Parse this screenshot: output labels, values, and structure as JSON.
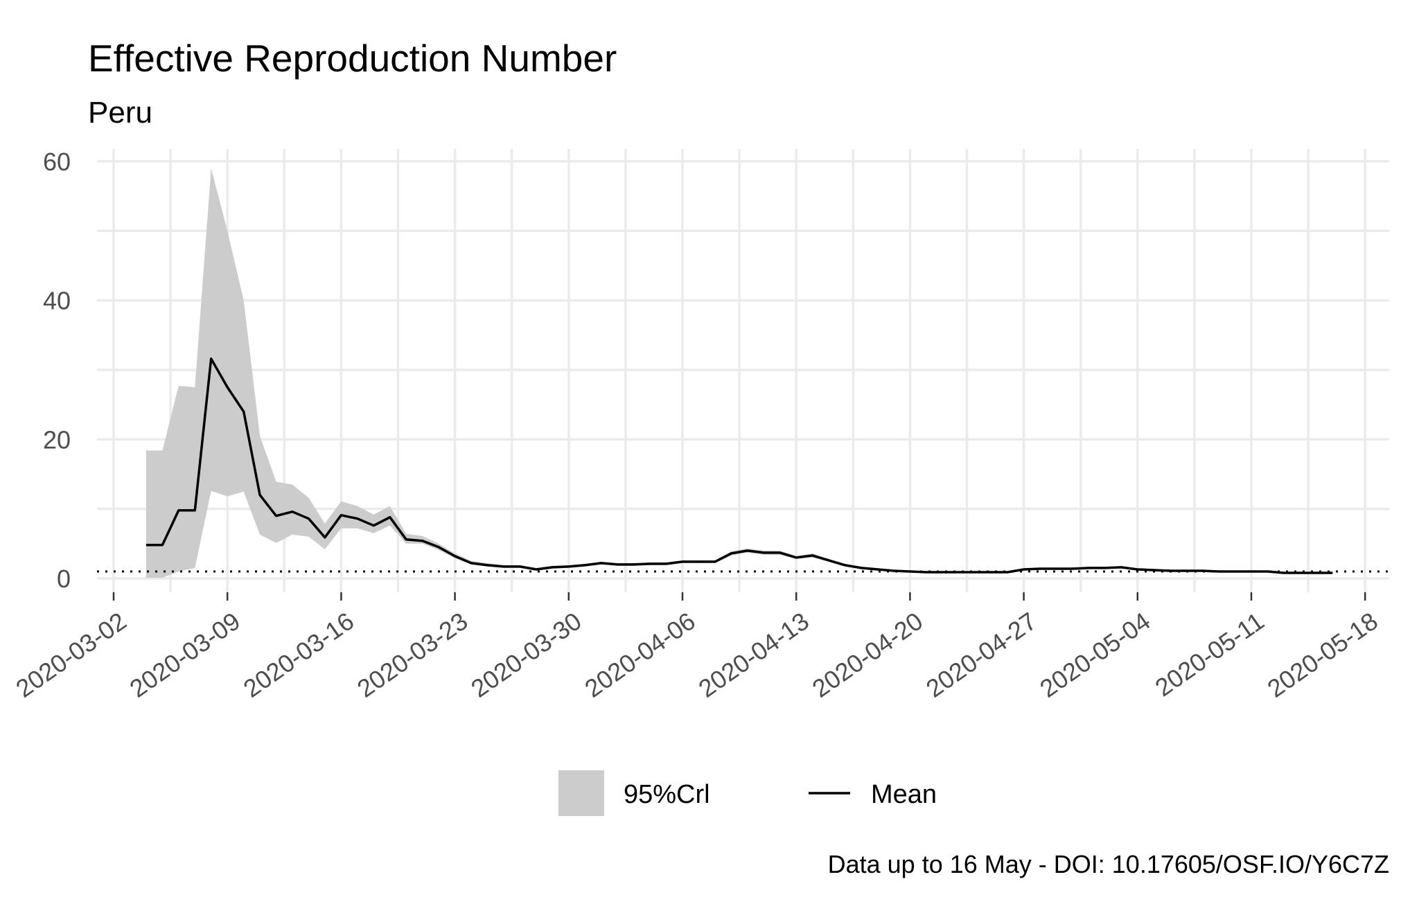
{
  "chart_data": {
    "type": "area",
    "title": "Effective Reproduction Number",
    "subtitle": "Peru",
    "xlabel": "",
    "ylabel": "",
    "caption": "Data up to 16 May - DOI: 10.17605/OSF.IO/Y6C7Z",
    "x_ticks": [
      "2020-03-02",
      "2020-03-09",
      "2020-03-16",
      "2020-03-23",
      "2020-03-30",
      "2020-04-06",
      "2020-04-13",
      "2020-04-20",
      "2020-04-27",
      "2020-05-04",
      "2020-05-11",
      "2020-05-18"
    ],
    "y_ticks": [
      0,
      20,
      40,
      60
    ],
    "xlim": [
      "2020-03-02",
      "2020-05-18"
    ],
    "ylim": [
      0,
      60
    ],
    "grid": true,
    "reference_line": {
      "y": 1,
      "style": "dotted"
    },
    "legend": {
      "position": "bottom",
      "items": [
        "95%Crl",
        "Mean"
      ]
    },
    "colors": {
      "band": "#cccccc",
      "mean": "#000000",
      "grid": "#ebebeb"
    },
    "x": [
      "2020-03-04",
      "2020-03-05",
      "2020-03-06",
      "2020-03-07",
      "2020-03-08",
      "2020-03-09",
      "2020-03-10",
      "2020-03-11",
      "2020-03-12",
      "2020-03-13",
      "2020-03-14",
      "2020-03-15",
      "2020-03-16",
      "2020-03-17",
      "2020-03-18",
      "2020-03-19",
      "2020-03-20",
      "2020-03-21",
      "2020-03-22",
      "2020-03-23",
      "2020-03-24",
      "2020-03-25",
      "2020-03-26",
      "2020-03-27",
      "2020-03-28",
      "2020-03-29",
      "2020-03-30",
      "2020-03-31",
      "2020-04-01",
      "2020-04-02",
      "2020-04-03",
      "2020-04-04",
      "2020-04-05",
      "2020-04-06",
      "2020-04-07",
      "2020-04-08",
      "2020-04-09",
      "2020-04-10",
      "2020-04-11",
      "2020-04-12",
      "2020-04-13",
      "2020-04-14",
      "2020-04-15",
      "2020-04-16",
      "2020-04-17",
      "2020-04-18",
      "2020-04-19",
      "2020-04-20",
      "2020-04-21",
      "2020-04-22",
      "2020-04-23",
      "2020-04-24",
      "2020-04-25",
      "2020-04-26",
      "2020-04-27",
      "2020-04-28",
      "2020-04-29",
      "2020-04-30",
      "2020-05-01",
      "2020-05-02",
      "2020-05-03",
      "2020-05-04",
      "2020-05-05",
      "2020-05-06",
      "2020-05-07",
      "2020-05-08",
      "2020-05-09",
      "2020-05-10",
      "2020-05-11",
      "2020-05-12",
      "2020-05-13",
      "2020-05-14",
      "2020-05-15",
      "2020-05-16"
    ],
    "series": [
      {
        "name": "Mean",
        "values": [
          4.8,
          4.8,
          9.8,
          9.8,
          31.6,
          27.5,
          24.0,
          12.0,
          9.0,
          9.6,
          8.6,
          5.9,
          9.1,
          8.6,
          7.6,
          8.8,
          5.6,
          5.4,
          4.5,
          3.2,
          2.2,
          1.9,
          1.7,
          1.7,
          1.3,
          1.6,
          1.7,
          1.9,
          2.2,
          2.0,
          2.0,
          2.1,
          2.1,
          2.4,
          2.4,
          2.4,
          3.6,
          4.0,
          3.7,
          3.7,
          3.0,
          3.3,
          2.6,
          1.9,
          1.5,
          1.3,
          1.1,
          1.0,
          0.9,
          0.9,
          0.9,
          0.9,
          0.9,
          0.9,
          1.3,
          1.4,
          1.4,
          1.4,
          1.5,
          1.5,
          1.6,
          1.3,
          1.2,
          1.1,
          1.1,
          1.1,
          1.0,
          1.0,
          1.0,
          1.0,
          0.8,
          0.8,
          0.8,
          0.8
        ]
      },
      {
        "name": "95%Crl",
        "lower": [
          0.1,
          0.1,
          1.0,
          1.5,
          12.6,
          11.8,
          12.5,
          6.3,
          5.1,
          6.3,
          6.0,
          4.2,
          7.2,
          7.2,
          6.5,
          7.6,
          5.0,
          5.0,
          4.1,
          2.9,
          2.0,
          1.7,
          1.5,
          1.5,
          1.2,
          1.4,
          1.5,
          1.7,
          2.0,
          1.8,
          1.8,
          1.9,
          1.9,
          2.2,
          2.2,
          2.2,
          3.3,
          3.7,
          3.4,
          3.4,
          2.8,
          3.0,
          2.4,
          1.7,
          1.4,
          1.2,
          1.0,
          0.9,
          0.8,
          0.8,
          0.8,
          0.8,
          0.8,
          0.8,
          1.2,
          1.3,
          1.3,
          1.3,
          1.4,
          1.4,
          1.5,
          1.2,
          1.1,
          1.0,
          1.0,
          1.0,
          0.9,
          0.9,
          0.9,
          0.9,
          0.7,
          0.7,
          0.7,
          0.7
        ],
        "upper": [
          18.4,
          18.4,
          27.7,
          27.5,
          59.0,
          50.0,
          40.0,
          20.5,
          13.9,
          13.5,
          11.6,
          7.9,
          11.1,
          10.4,
          9.2,
          10.4,
          6.4,
          6.1,
          5.0,
          3.6,
          2.5,
          2.2,
          1.9,
          1.9,
          1.5,
          1.8,
          1.9,
          2.1,
          2.4,
          2.2,
          2.2,
          2.3,
          2.3,
          2.6,
          2.6,
          2.6,
          3.9,
          4.3,
          4.0,
          4.0,
          3.2,
          3.6,
          2.8,
          2.1,
          1.7,
          1.5,
          1.2,
          1.1,
          1.0,
          1.0,
          1.0,
          1.0,
          1.0,
          1.0,
          1.4,
          1.5,
          1.5,
          1.5,
          1.6,
          1.6,
          1.7,
          1.4,
          1.3,
          1.2,
          1.2,
          1.2,
          1.1,
          1.1,
          1.1,
          1.1,
          0.9,
          0.9,
          0.9,
          0.9
        ]
      }
    ]
  }
}
